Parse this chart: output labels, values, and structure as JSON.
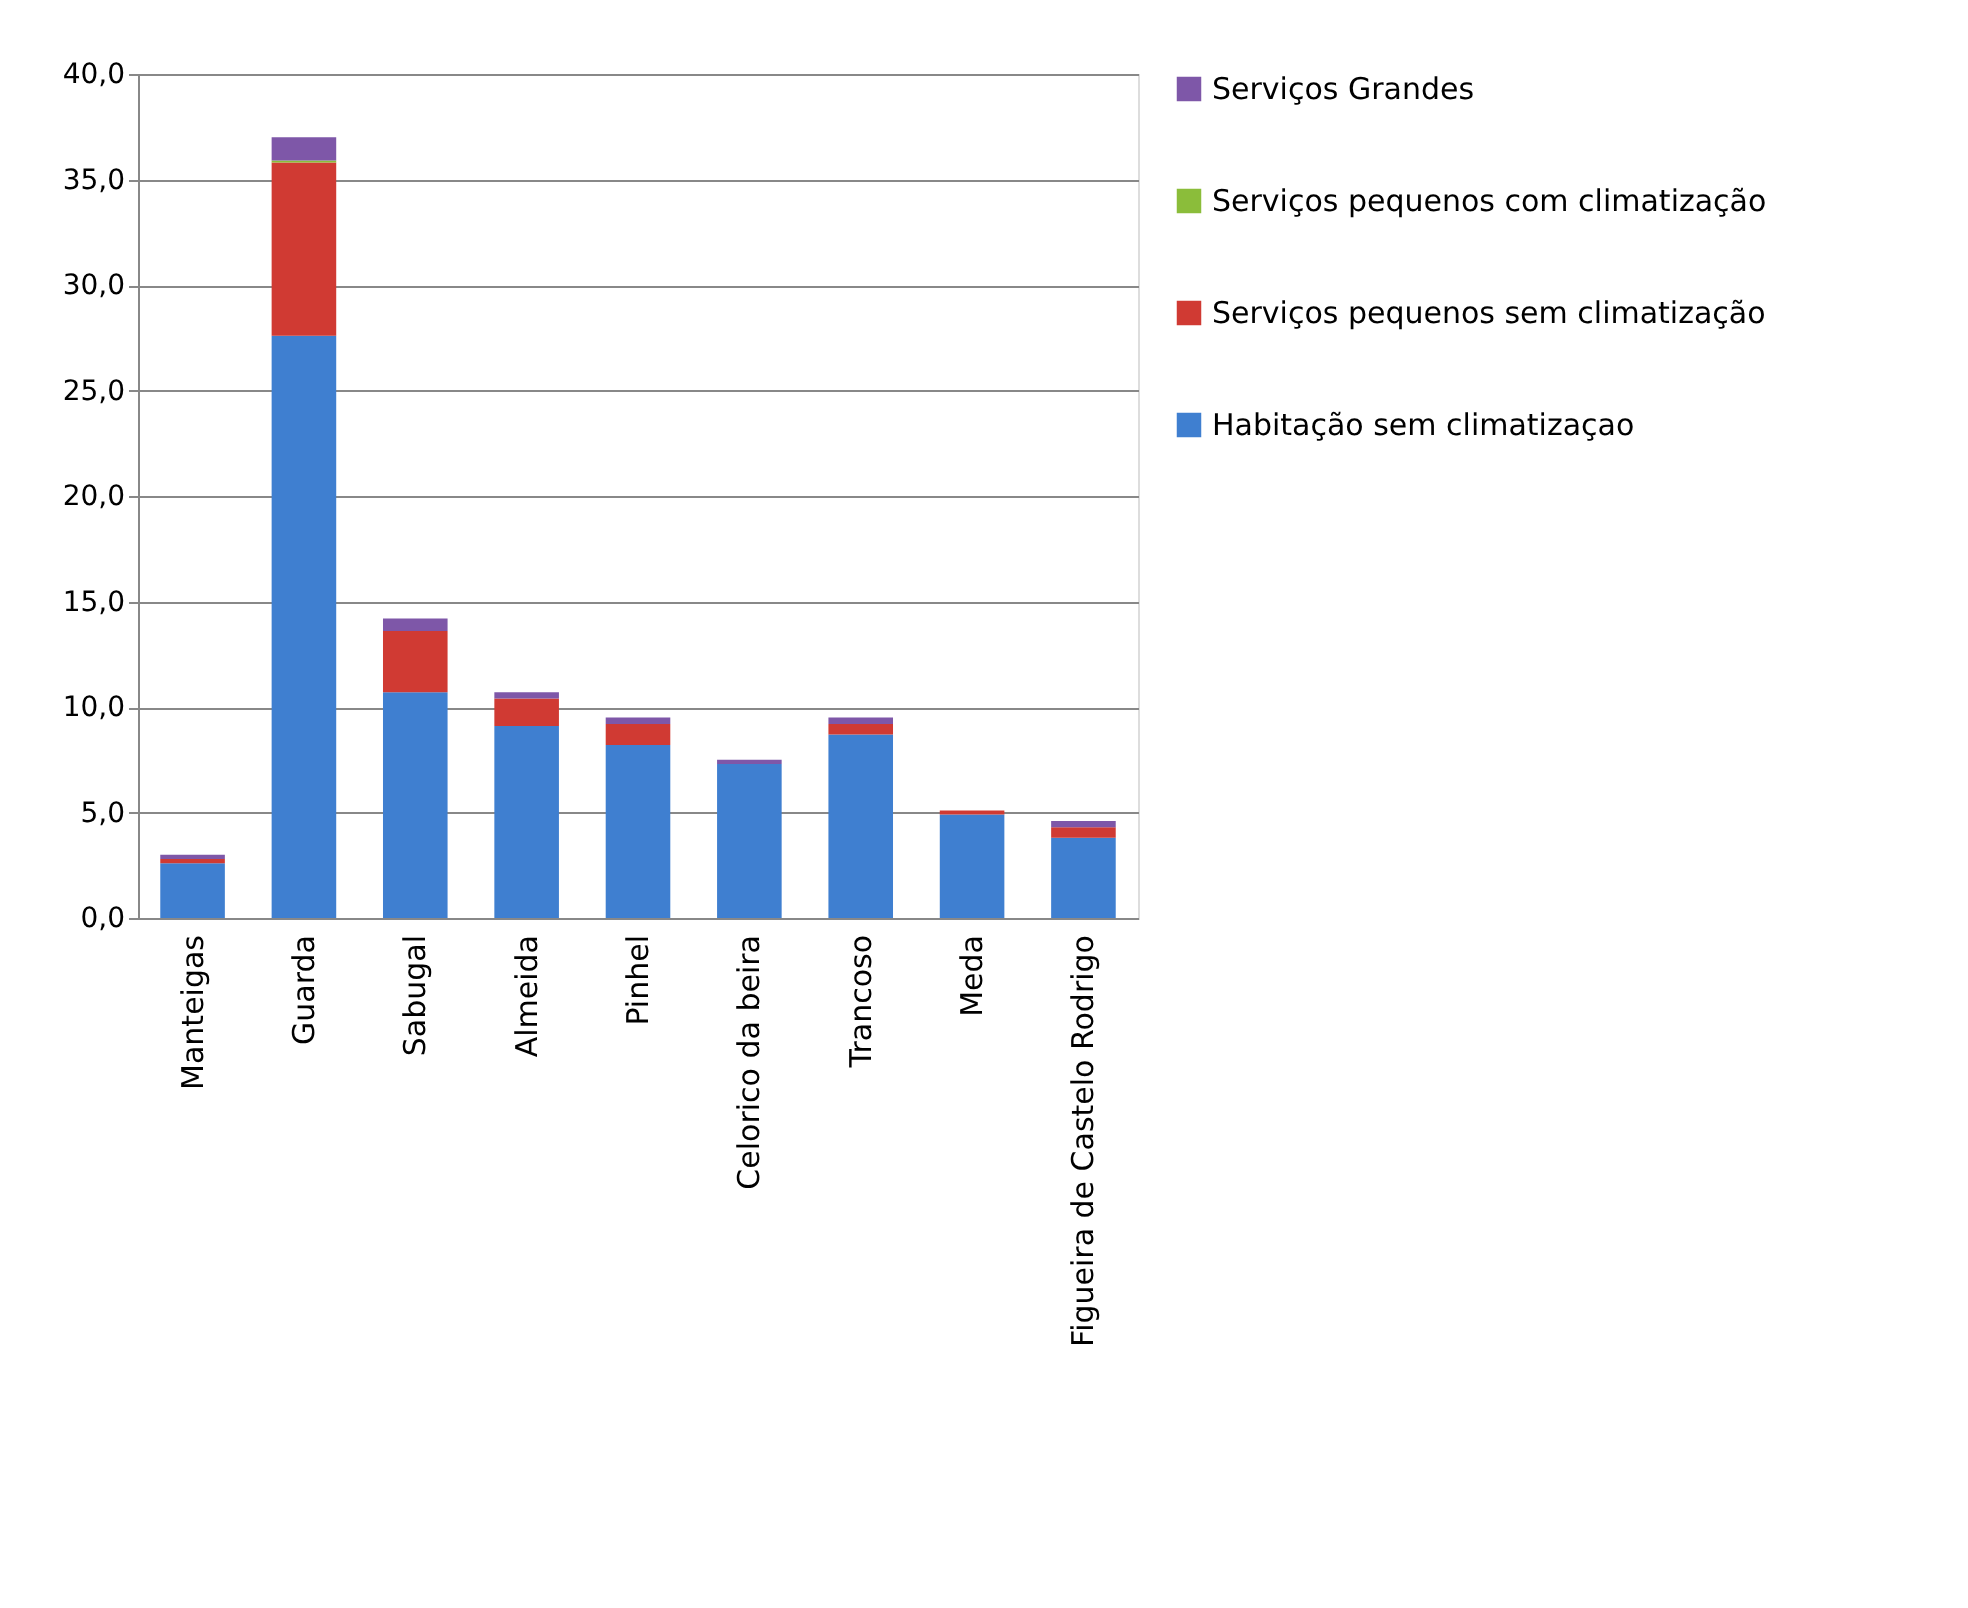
{
  "chart_data": {
    "type": "bar",
    "stacked": true,
    "categories": [
      "Manteigas",
      "Guarda",
      "Sabugal",
      "Almeida",
      "Pinhel",
      "Celorico da beira",
      "Trancoso",
      "Meda",
      "Figueira de Castelo Rodrigo"
    ],
    "series": [
      {
        "name": "Habitação sem climatizaçao",
        "color": "#3f7fd0",
        "values": [
          2.6,
          27.6,
          10.7,
          9.1,
          8.2,
          7.3,
          8.7,
          4.9,
          3.8
        ]
      },
      {
        "name": "Serviços pequenos sem climatização",
        "color": "#d03a33",
        "values": [
          0.2,
          8.2,
          2.9,
          1.3,
          1.0,
          null,
          0.5,
          0.2,
          0.5
        ]
      },
      {
        "name": "Serviços pequenos com climatização",
        "color": "#8bbd3a",
        "values": [
          null,
          0.1,
          null,
          null,
          null,
          null,
          null,
          null,
          null
        ]
      },
      {
        "name": "Serviços Grandes",
        "color": "#7e57a8",
        "values": [
          0.2,
          1.1,
          0.6,
          0.3,
          0.3,
          0.2,
          0.3,
          null,
          0.3
        ]
      }
    ],
    "ylim": [
      0,
      40
    ],
    "yticks": [
      {
        "value": 0,
        "label": "0,0"
      },
      {
        "value": 5,
        "label": "5,0"
      },
      {
        "value": 10,
        "label": "10,0"
      },
      {
        "value": 15,
        "label": "15,0"
      },
      {
        "value": 20,
        "label": "20,0"
      },
      {
        "value": 25,
        "label": "25,0"
      },
      {
        "value": 30,
        "label": "30,0"
      },
      {
        "value": 35,
        "label": "35,0"
      },
      {
        "value": 40,
        "label": "40,0"
      }
    ],
    "grid": "y",
    "legend": "right"
  }
}
